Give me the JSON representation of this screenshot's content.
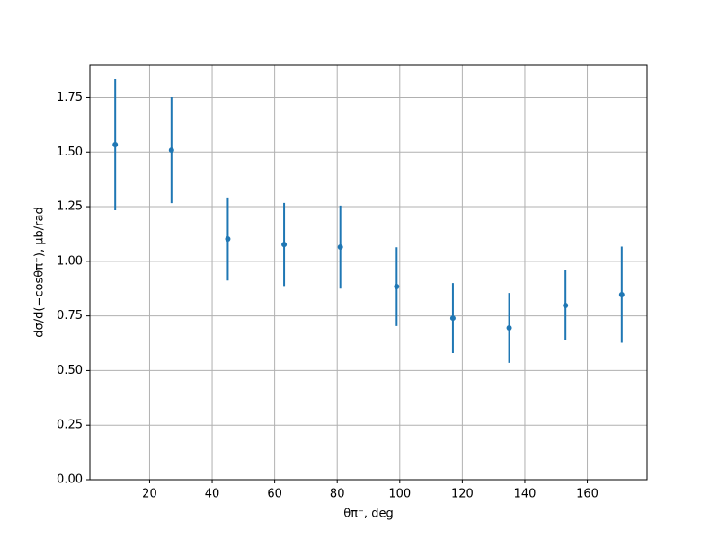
{
  "chart_data": {
    "type": "errorbar",
    "xlabel": "θπ⁻, deg",
    "ylabel": "dσ/d(−cosθπ⁻), μb/rad",
    "x": [
      9,
      27,
      45,
      63,
      81,
      99,
      117,
      135,
      153,
      171
    ],
    "values": [
      1.534,
      1.509,
      1.102,
      1.077,
      1.065,
      0.884,
      0.74,
      0.695,
      0.798,
      0.847
    ],
    "errors": [
      0.3,
      0.243,
      0.19,
      0.19,
      0.19,
      0.18,
      0.16,
      0.16,
      0.16,
      0.22
    ],
    "color": "#1f77b4",
    "xlim": [
      0.9,
      179.1
    ],
    "ylim": [
      0,
      1.9
    ],
    "xticks": [
      20,
      40,
      60,
      80,
      100,
      120,
      140,
      160
    ],
    "yticks": [
      {
        "value": 0,
        "label": "0.00"
      },
      {
        "value": 0.25,
        "label": "0.25"
      },
      {
        "value": 0.5,
        "label": "0.50"
      },
      {
        "value": 0.75,
        "label": "0.75"
      },
      {
        "value": 1,
        "label": "1.00"
      },
      {
        "value": 1.25,
        "label": "1.25"
      },
      {
        "value": 1.5,
        "label": "1.50"
      },
      {
        "value": 1.75,
        "label": "1.75"
      }
    ],
    "grid": true
  }
}
